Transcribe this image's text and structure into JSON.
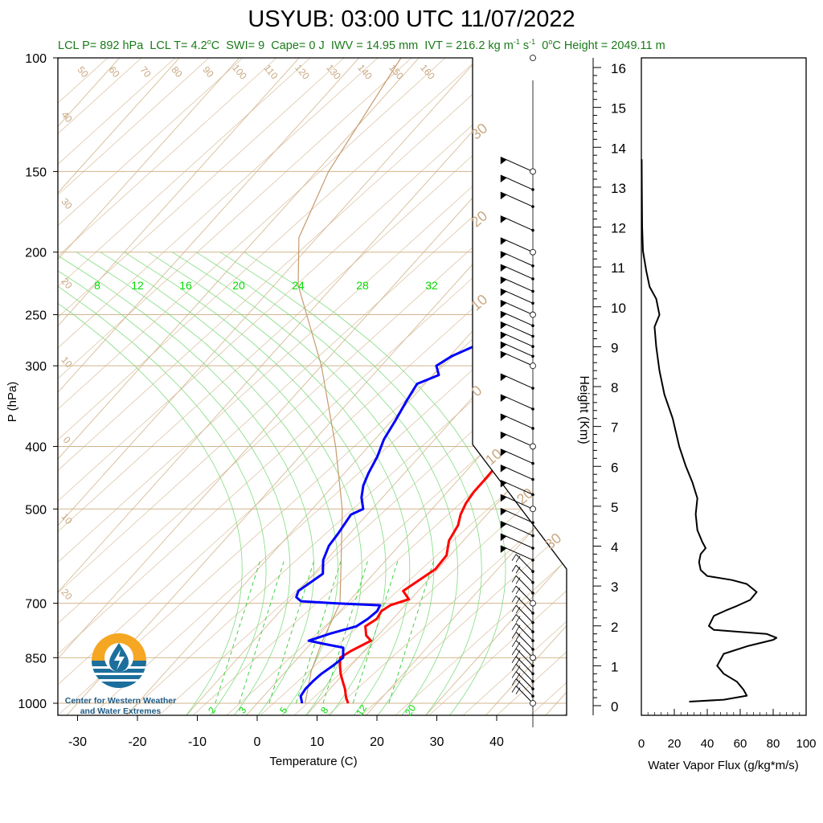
{
  "title": "USYUB: 03:00 UTC 11/07/2022",
  "subtitle_parts": {
    "lcl_p": "LCL P= 892 hPa",
    "lcl_t": "LCL T= 4.2",
    "lcl_t_unit": "o",
    "lcl_t_c": "C",
    "swi": "SWI= 9",
    "cape": "Cape= 0 J",
    "iwv": "IWV = 14.95 mm",
    "ivt": "IVT = 216.2 kg m",
    "ivt_e1": "-1",
    "ivt_s": " s",
    "ivt_e2": "-1",
    "freeze": "0",
    "freeze_unit": "o",
    "freeze_rest": "C Height = 2049.11 m"
  },
  "logo": {
    "line1": "Center for Western Weather",
    "line2": "and Water Extremes",
    "colors": {
      "orange": "#f5a623",
      "blue": "#1c6f9c"
    }
  },
  "colors": {
    "temperature": "#ff0000",
    "dewpoint": "#0000ff",
    "isotherm": "#d2b48c",
    "mixing_ratio": "#00cc00",
    "label_tan": "#c8a882",
    "label_green": "#00dd00",
    "subtitle": "#1a7a1a"
  },
  "chart_data": [
    {
      "type": "line",
      "name": "skew-t",
      "xlabel": "Temperature (C)",
      "ylabel": "P (hPa)",
      "xlim": [
        -34,
        48
      ],
      "ylim": [
        1050,
        100
      ],
      "yscale": "log",
      "x_ticks": [
        -30,
        -20,
        -10,
        0,
        10,
        20,
        30,
        40
      ],
      "y_ticks": [
        100,
        150,
        200,
        250,
        300,
        400,
        500,
        700,
        850,
        1000
      ],
      "isotherm_labels": [
        50,
        60,
        70,
        80,
        90,
        100,
        110,
        120,
        130,
        140,
        150,
        160
      ],
      "left_labels": [
        40,
        30,
        20,
        10,
        0,
        10,
        20
      ],
      "right_labels": [
        30,
        20,
        10,
        0,
        10,
        20,
        30
      ],
      "mixing_ratio_top_labels": [
        8,
        12,
        16,
        20,
        24,
        28,
        32
      ],
      "mixing_ratio_bottom_labels": [
        2,
        3,
        5,
        8,
        12,
        20
      ],
      "series": [
        {
          "name": "temperature",
          "values": [
            [
              15.2,
              1000
            ],
            [
              14.0,
              980
            ],
            [
              12.5,
              950
            ],
            [
              11.0,
              925
            ],
            [
              9.5,
              900
            ],
            [
              8.2,
              875
            ],
            [
              7.0,
              850
            ],
            [
              7.8,
              830
            ],
            [
              9.6,
              800
            ],
            [
              8.0,
              785
            ],
            [
              6.5,
              760
            ],
            [
              7.3,
              740
            ],
            [
              6.9,
              720
            ],
            [
              7.5,
              705
            ],
            [
              9.7,
              690
            ],
            [
              7.5,
              670
            ],
            [
              9.6,
              620
            ],
            [
              9.4,
              590
            ],
            [
              7.6,
              560
            ],
            [
              6.8,
              530
            ],
            [
              5.6,
              510
            ],
            [
              4.8,
              490
            ],
            [
              4.4,
              470
            ],
            [
              4.4,
              450
            ],
            [
              4.3,
              430
            ],
            [
              3.1,
              410
            ],
            [
              1.0,
              390
            ],
            [
              -0.2,
              370
            ],
            [
              0.0,
              350
            ],
            [
              -1.0,
              330
            ],
            [
              0.0,
              310
            ],
            [
              -0.5,
              295
            ],
            [
              -1.8,
              280
            ],
            [
              -2.6,
              265
            ],
            [
              -2.8,
              250
            ],
            [
              -3.4,
              235
            ],
            [
              -3.8,
              220
            ],
            [
              -3.2,
              205
            ],
            [
              -3.6,
              190
            ],
            [
              -2.3,
              175
            ],
            [
              -1.8,
              165
            ],
            [
              -2.4,
              155
            ],
            [
              -2.2,
              150
            ]
          ]
        },
        {
          "name": "dewpoint",
          "values": [
            [
              7.5,
              1000
            ],
            [
              6.2,
              975
            ],
            [
              5.9,
              950
            ],
            [
              6.0,
              925
            ],
            [
              6.3,
              900
            ],
            [
              7.0,
              875
            ],
            [
              7.5,
              850
            ],
            [
              6.0,
              820
            ],
            [
              2.5,
              810
            ],
            [
              -0.8,
              800
            ],
            [
              1.7,
              780
            ],
            [
              5.0,
              760
            ],
            [
              5.8,
              740
            ],
            [
              6.2,
              720
            ],
            [
              5.8,
              705
            ],
            [
              -2.0,
              700
            ],
            [
              -8.0,
              695
            ],
            [
              -9.4,
              685
            ],
            [
              -10.0,
              670
            ],
            [
              -8.5,
              630
            ],
            [
              -10.5,
              600
            ],
            [
              -11.7,
              570
            ],
            [
              -12.0,
              545
            ],
            [
              -12.7,
              510
            ],
            [
              -11.5,
              500
            ],
            [
              -13.5,
              480
            ],
            [
              -15.0,
              460
            ],
            [
              -16.0,
              440
            ],
            [
              -17.0,
              415
            ],
            [
              -18.5,
              390
            ],
            [
              -19.4,
              365
            ],
            [
              -20.5,
              340
            ],
            [
              -21.3,
              320
            ],
            [
              -19.0,
              310
            ],
            [
              -20.8,
              300
            ],
            [
              -19.7,
              290
            ],
            [
              -17.5,
              280
            ],
            [
              -10.4,
              270
            ],
            [
              -9.6,
              262
            ],
            [
              -11.3,
              256
            ],
            [
              -10.2,
              248
            ],
            [
              -13.0,
              238
            ],
            [
              -13.8,
              230
            ],
            [
              -17.5,
              222
            ],
            [
              -21.3,
              212
            ],
            [
              -21.9,
              200
            ],
            [
              -22.3,
              185
            ],
            [
              -21.9,
              170
            ],
            [
              -21.0,
              160
            ],
            [
              -20.5,
              150
            ]
          ]
        }
      ]
    },
    {
      "type": "line",
      "name": "wind-barbs",
      "note_levels_hpa": [
        1000,
        975,
        950,
        925,
        900,
        875,
        850,
        825,
        800,
        775,
        750,
        725,
        700,
        675,
        650,
        625,
        600,
        575,
        550,
        525,
        500,
        475,
        450,
        425,
        400,
        375,
        350,
        325,
        300,
        290,
        280,
        270,
        260,
        250,
        240,
        230,
        220,
        210,
        200,
        185,
        170,
        160,
        150
      ]
    },
    {
      "type": "line",
      "name": "water-vapor-flux",
      "xlabel": "Water Vapor Flux (g/kg*m/s)",
      "ylabel": "Height (Km)",
      "xlim": [
        0,
        100
      ],
      "ylim": [
        -0.25,
        16.4
      ],
      "x_ticks": [
        0,
        20,
        40,
        60,
        80,
        100
      ],
      "y_ticks": [
        0,
        1,
        2,
        3,
        4,
        5,
        6,
        7,
        8,
        9,
        10,
        11,
        12,
        13,
        14,
        15,
        16
      ],
      "series": [
        {
          "name": "flux",
          "values": [
            [
              29,
              0.1
            ],
            [
              50,
              0.15
            ],
            [
              64,
              0.25
            ],
            [
              62,
              0.4
            ],
            [
              58,
              0.6
            ],
            [
              50,
              0.8
            ],
            [
              46,
              1.0
            ],
            [
              50,
              1.3
            ],
            [
              65,
              1.5
            ],
            [
              80,
              1.65
            ],
            [
              82,
              1.7
            ],
            [
              76,
              1.8
            ],
            [
              60,
              1.85
            ],
            [
              44,
              1.9
            ],
            [
              41,
              2.0
            ],
            [
              44,
              2.25
            ],
            [
              52,
              2.4
            ],
            [
              58,
              2.5
            ],
            [
              66,
              2.65
            ],
            [
              70,
              2.85
            ],
            [
              64,
              3.05
            ],
            [
              55,
              3.15
            ],
            [
              40,
              3.25
            ],
            [
              36,
              3.4
            ],
            [
              35,
              3.6
            ],
            [
              36,
              3.8
            ],
            [
              39,
              3.95
            ],
            [
              37,
              4.1
            ],
            [
              34,
              4.4
            ],
            [
              33,
              4.8
            ],
            [
              34,
              5.2
            ],
            [
              31,
              5.6
            ],
            [
              27,
              6.0
            ],
            [
              23,
              6.5
            ],
            [
              19,
              7.2
            ],
            [
              14,
              7.8
            ],
            [
              11,
              8.4
            ],
            [
              9,
              9.0
            ],
            [
              8,
              9.5
            ],
            [
              11,
              9.8
            ],
            [
              9,
              10.2
            ],
            [
              5,
              10.5
            ],
            [
              3,
              10.9
            ],
            [
              1,
              11.4
            ],
            [
              0.5,
              12.0
            ],
            [
              0.3,
              13.0
            ],
            [
              0.2,
              13.7
            ]
          ]
        }
      ]
    }
  ]
}
